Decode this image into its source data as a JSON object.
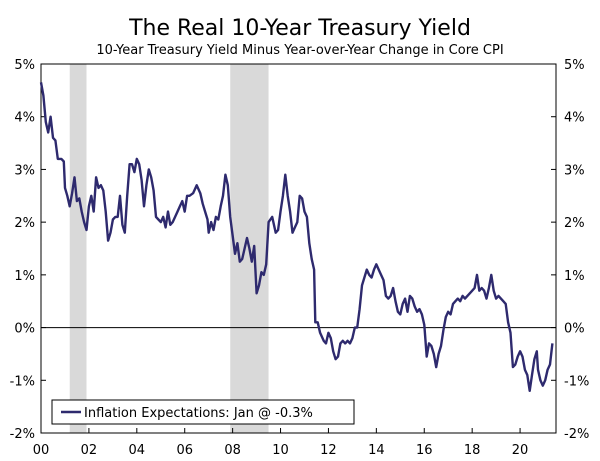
{
  "chart_data": {
    "type": "line",
    "title": "The Real 10-Year Treasury Yield",
    "subtitle": "10-Year Treasury Yield Minus Year-over-Year Change in Core CPI",
    "xlabel": "",
    "ylabel": "",
    "xlim": [
      2000.0,
      2021.5
    ],
    "ylim": [
      -2,
      5
    ],
    "y_ticks": [
      {
        "value": 5,
        "label": "5%"
      },
      {
        "value": 4,
        "label": "4%"
      },
      {
        "value": 3,
        "label": "3%"
      },
      {
        "value": 2,
        "label": "2%"
      },
      {
        "value": 1,
        "label": "1%"
      },
      {
        "value": 0,
        "label": "0%"
      },
      {
        "value": -1,
        "label": "-1%"
      },
      {
        "value": -2,
        "label": "-2%"
      }
    ],
    "x_ticks": [
      {
        "value": 2000,
        "label": "00"
      },
      {
        "value": 2002,
        "label": "02"
      },
      {
        "value": 2004,
        "label": "04"
      },
      {
        "value": 2006,
        "label": "06"
      },
      {
        "value": 2008,
        "label": "08"
      },
      {
        "value": 2010,
        "label": "10"
      },
      {
        "value": 2012,
        "label": "12"
      },
      {
        "value": 2014,
        "label": "14"
      },
      {
        "value": 2016,
        "label": "16"
      },
      {
        "value": 2018,
        "label": "18"
      },
      {
        "value": 2020,
        "label": "20"
      }
    ],
    "recessions": [
      {
        "start": 2001.2,
        "end": 2001.9
      },
      {
        "start": 2007.9,
        "end": 2009.5
      }
    ],
    "legend": {
      "label": "Inflation Expectations: Jan @ -0.3%",
      "position": "bottom-left"
    },
    "zero_line": 0,
    "series": [
      {
        "name": "Inflation Expectations",
        "color": "#2e2a6e",
        "points": [
          [
            2000.0,
            4.65
          ],
          [
            2000.1,
            4.4
          ],
          [
            2000.2,
            3.9
          ],
          [
            2000.3,
            3.7
          ],
          [
            2000.4,
            4.0
          ],
          [
            2000.5,
            3.6
          ],
          [
            2000.6,
            3.55
          ],
          [
            2000.7,
            3.2
          ],
          [
            2000.85,
            3.2
          ],
          [
            2000.95,
            3.15
          ],
          [
            2001.0,
            2.65
          ],
          [
            2001.1,
            2.5
          ],
          [
            2001.2,
            2.3
          ],
          [
            2001.3,
            2.55
          ],
          [
            2001.4,
            2.85
          ],
          [
            2001.5,
            2.4
          ],
          [
            2001.6,
            2.45
          ],
          [
            2001.7,
            2.2
          ],
          [
            2001.8,
            2.0
          ],
          [
            2001.9,
            1.85
          ],
          [
            2002.0,
            2.3
          ],
          [
            2002.1,
            2.5
          ],
          [
            2002.2,
            2.2
          ],
          [
            2002.3,
            2.85
          ],
          [
            2002.4,
            2.65
          ],
          [
            2002.5,
            2.7
          ],
          [
            2002.6,
            2.6
          ],
          [
            2002.7,
            2.2
          ],
          [
            2002.8,
            1.65
          ],
          [
            2002.9,
            1.8
          ],
          [
            2003.0,
            2.05
          ],
          [
            2003.1,
            2.1
          ],
          [
            2003.2,
            2.1
          ],
          [
            2003.3,
            2.5
          ],
          [
            2003.4,
            1.95
          ],
          [
            2003.5,
            1.8
          ],
          [
            2003.6,
            2.5
          ],
          [
            2003.7,
            3.1
          ],
          [
            2003.8,
            3.1
          ],
          [
            2003.9,
            2.95
          ],
          [
            2004.0,
            3.2
          ],
          [
            2004.1,
            3.1
          ],
          [
            2004.2,
            2.8
          ],
          [
            2004.3,
            2.3
          ],
          [
            2004.4,
            2.7
          ],
          [
            2004.5,
            3.0
          ],
          [
            2004.6,
            2.85
          ],
          [
            2004.7,
            2.6
          ],
          [
            2004.8,
            2.1
          ],
          [
            2004.9,
            2.05
          ],
          [
            2005.0,
            2.0
          ],
          [
            2005.1,
            2.1
          ],
          [
            2005.2,
            1.9
          ],
          [
            2005.3,
            2.2
          ],
          [
            2005.4,
            1.95
          ],
          [
            2005.5,
            2.0
          ],
          [
            2005.6,
            2.1
          ],
          [
            2005.7,
            2.2
          ],
          [
            2005.8,
            2.3
          ],
          [
            2005.9,
            2.4
          ],
          [
            2006.0,
            2.2
          ],
          [
            2006.1,
            2.5
          ],
          [
            2006.2,
            2.5
          ],
          [
            2006.35,
            2.55
          ],
          [
            2006.5,
            2.7
          ],
          [
            2006.65,
            2.55
          ],
          [
            2006.75,
            2.35
          ],
          [
            2006.85,
            2.2
          ],
          [
            2006.95,
            2.05
          ],
          [
            2007.0,
            1.8
          ],
          [
            2007.1,
            2.0
          ],
          [
            2007.2,
            1.85
          ],
          [
            2007.3,
            2.1
          ],
          [
            2007.4,
            2.05
          ],
          [
            2007.5,
            2.3
          ],
          [
            2007.6,
            2.5
          ],
          [
            2007.7,
            2.9
          ],
          [
            2007.8,
            2.7
          ],
          [
            2007.9,
            2.1
          ],
          [
            2008.0,
            1.75
          ],
          [
            2008.1,
            1.4
          ],
          [
            2008.2,
            1.6
          ],
          [
            2008.3,
            1.25
          ],
          [
            2008.4,
            1.3
          ],
          [
            2008.5,
            1.5
          ],
          [
            2008.6,
            1.7
          ],
          [
            2008.7,
            1.5
          ],
          [
            2008.8,
            1.25
          ],
          [
            2008.9,
            1.55
          ],
          [
            2009.0,
            0.65
          ],
          [
            2009.1,
            0.8
          ],
          [
            2009.2,
            1.05
          ],
          [
            2009.3,
            1.0
          ],
          [
            2009.4,
            1.2
          ],
          [
            2009.5,
            2.0
          ],
          [
            2009.65,
            2.1
          ],
          [
            2009.8,
            1.8
          ],
          [
            2009.9,
            1.85
          ],
          [
            2010.0,
            2.2
          ],
          [
            2010.1,
            2.5
          ],
          [
            2010.2,
            2.9
          ],
          [
            2010.3,
            2.5
          ],
          [
            2010.4,
            2.2
          ],
          [
            2010.5,
            1.8
          ],
          [
            2010.6,
            1.9
          ],
          [
            2010.7,
            2.0
          ],
          [
            2010.8,
            2.5
          ],
          [
            2010.9,
            2.45
          ],
          [
            2011.0,
            2.2
          ],
          [
            2011.1,
            2.1
          ],
          [
            2011.2,
            1.6
          ],
          [
            2011.3,
            1.3
          ],
          [
            2011.4,
            1.1
          ],
          [
            2011.45,
            0.1
          ],
          [
            2011.55,
            0.1
          ],
          [
            2011.65,
            -0.1
          ],
          [
            2011.8,
            -0.25
          ],
          [
            2011.9,
            -0.3
          ],
          [
            2012.0,
            -0.1
          ],
          [
            2012.1,
            -0.2
          ],
          [
            2012.2,
            -0.45
          ],
          [
            2012.3,
            -0.6
          ],
          [
            2012.4,
            -0.55
          ],
          [
            2012.5,
            -0.3
          ],
          [
            2012.6,
            -0.25
          ],
          [
            2012.7,
            -0.3
          ],
          [
            2012.8,
            -0.25
          ],
          [
            2012.9,
            -0.3
          ],
          [
            2013.0,
            -0.2
          ],
          [
            2013.1,
            0.0
          ],
          [
            2013.2,
            0.0
          ],
          [
            2013.3,
            0.35
          ],
          [
            2013.4,
            0.8
          ],
          [
            2013.5,
            0.95
          ],
          [
            2013.6,
            1.1
          ],
          [
            2013.7,
            1.0
          ],
          [
            2013.8,
            0.95
          ],
          [
            2013.9,
            1.1
          ],
          [
            2014.0,
            1.2
          ],
          [
            2014.1,
            1.1
          ],
          [
            2014.2,
            1.0
          ],
          [
            2014.3,
            0.9
          ],
          [
            2014.4,
            0.6
          ],
          [
            2014.5,
            0.55
          ],
          [
            2014.6,
            0.6
          ],
          [
            2014.7,
            0.75
          ],
          [
            2014.8,
            0.5
          ],
          [
            2014.9,
            0.3
          ],
          [
            2015.0,
            0.25
          ],
          [
            2015.1,
            0.45
          ],
          [
            2015.2,
            0.55
          ],
          [
            2015.3,
            0.3
          ],
          [
            2015.4,
            0.6
          ],
          [
            2015.5,
            0.55
          ],
          [
            2015.6,
            0.4
          ],
          [
            2015.7,
            0.3
          ],
          [
            2015.8,
            0.35
          ],
          [
            2015.9,
            0.25
          ],
          [
            2016.0,
            0.05
          ],
          [
            2016.1,
            -0.55
          ],
          [
            2016.2,
            -0.3
          ],
          [
            2016.3,
            -0.35
          ],
          [
            2016.4,
            -0.5
          ],
          [
            2016.5,
            -0.75
          ],
          [
            2016.6,
            -0.5
          ],
          [
            2016.7,
            -0.35
          ],
          [
            2016.8,
            -0.05
          ],
          [
            2016.9,
            0.2
          ],
          [
            2017.0,
            0.3
          ],
          [
            2017.1,
            0.25
          ],
          [
            2017.2,
            0.45
          ],
          [
            2017.3,
            0.5
          ],
          [
            2017.4,
            0.55
          ],
          [
            2017.5,
            0.5
          ],
          [
            2017.6,
            0.6
          ],
          [
            2017.7,
            0.55
          ],
          [
            2017.8,
            0.6
          ],
          [
            2017.9,
            0.65
          ],
          [
            2018.0,
            0.7
          ],
          [
            2018.1,
            0.75
          ],
          [
            2018.2,
            1.0
          ],
          [
            2018.3,
            0.7
          ],
          [
            2018.4,
            0.75
          ],
          [
            2018.5,
            0.7
          ],
          [
            2018.6,
            0.55
          ],
          [
            2018.7,
            0.75
          ],
          [
            2018.8,
            1.0
          ],
          [
            2018.9,
            0.7
          ],
          [
            2019.0,
            0.55
          ],
          [
            2019.1,
            0.6
          ],
          [
            2019.2,
            0.55
          ],
          [
            2019.3,
            0.5
          ],
          [
            2019.4,
            0.45
          ],
          [
            2019.5,
            0.1
          ],
          [
            2019.6,
            -0.1
          ],
          [
            2019.7,
            -0.75
          ],
          [
            2019.8,
            -0.7
          ],
          [
            2019.9,
            -0.55
          ],
          [
            2020.0,
            -0.45
          ],
          [
            2020.1,
            -0.55
          ],
          [
            2020.2,
            -0.8
          ],
          [
            2020.3,
            -0.9
          ],
          [
            2020.4,
            -1.2
          ],
          [
            2020.5,
            -0.9
          ],
          [
            2020.6,
            -0.6
          ],
          [
            2020.7,
            -0.45
          ],
          [
            2020.75,
            -0.8
          ],
          [
            2020.85,
            -1.0
          ],
          [
            2020.95,
            -1.1
          ],
          [
            2021.05,
            -1.0
          ],
          [
            2021.15,
            -0.8
          ],
          [
            2021.25,
            -0.7
          ],
          [
            2021.35,
            -0.3
          ]
        ]
      }
    ]
  }
}
